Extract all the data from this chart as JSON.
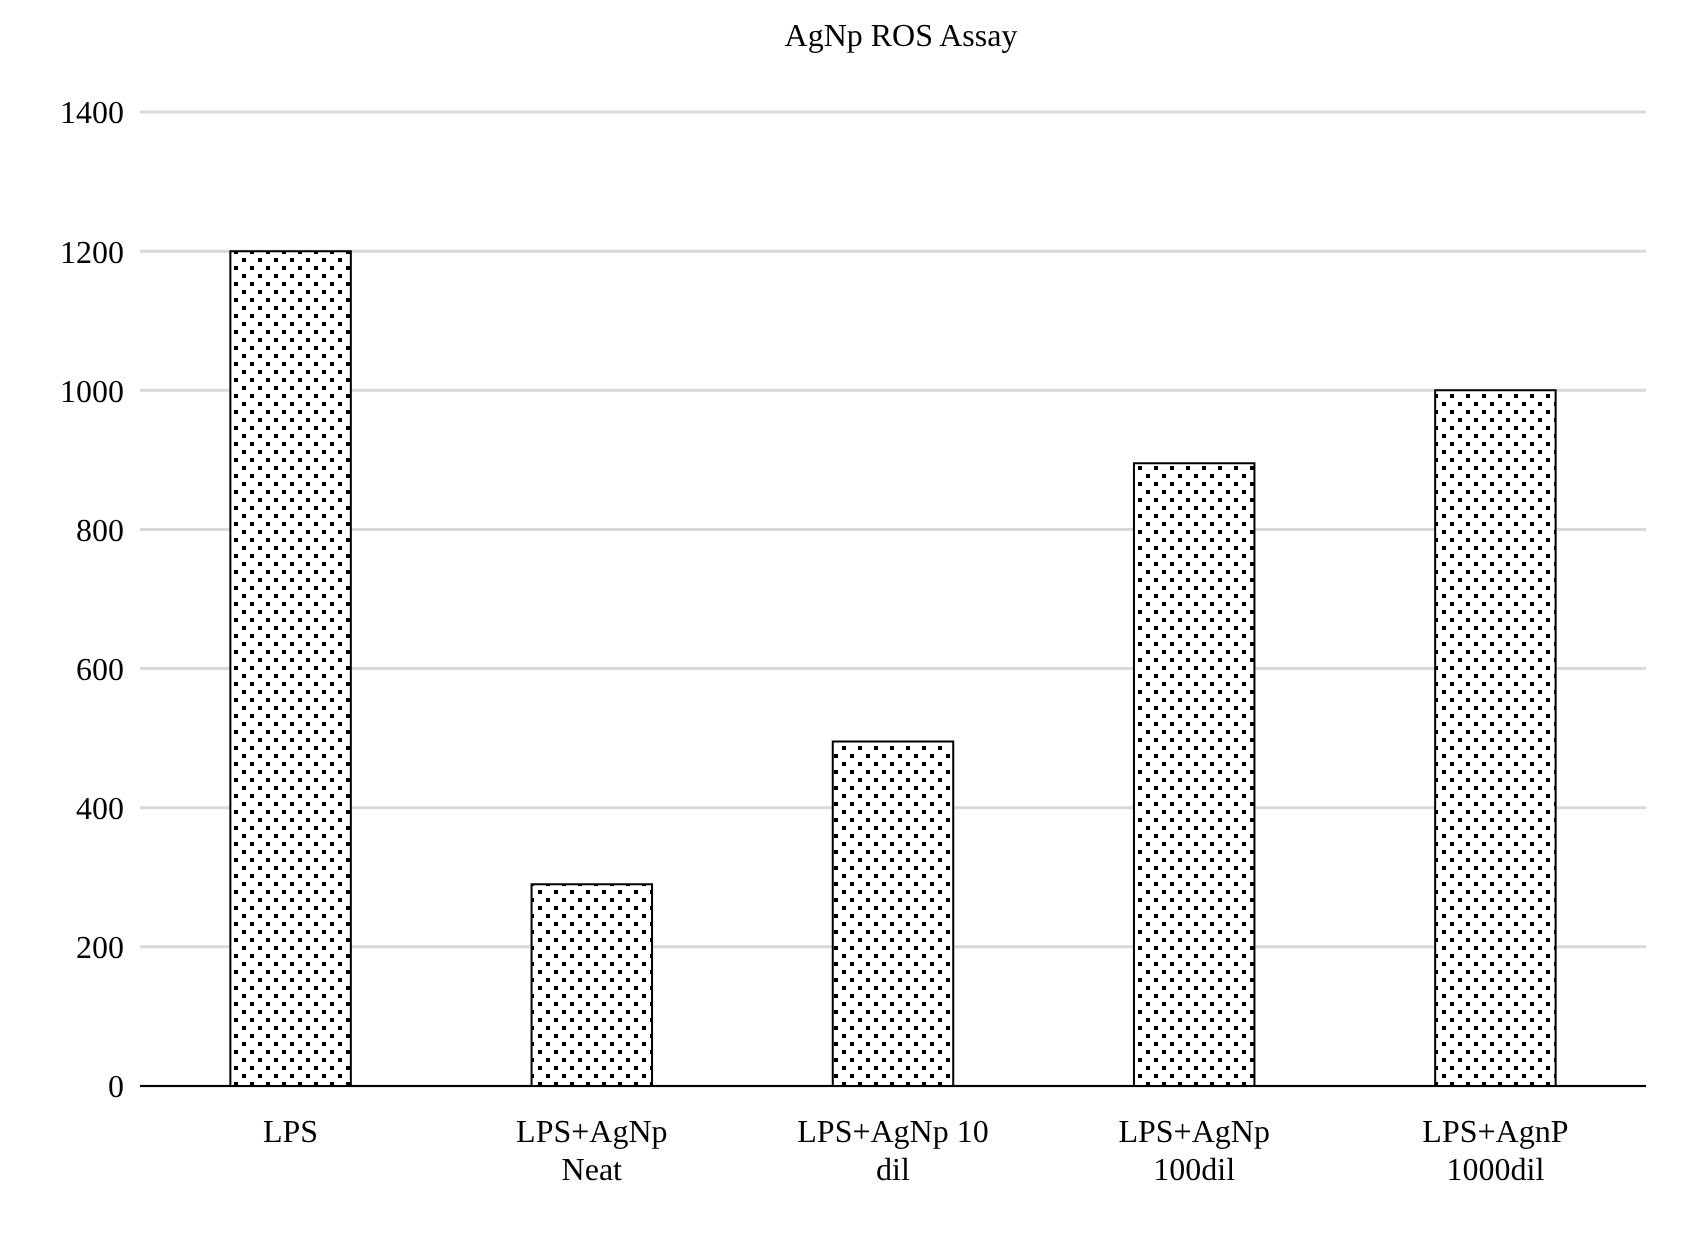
{
  "chart_data": {
    "type": "bar",
    "title": "AgNp ROS Assay",
    "categories": [
      "LPS",
      "LPS+AgNp Neat",
      "LPS+AgNp 10 dil",
      "LPS+AgNp 100dil",
      "LPS+AgnP 1000dil"
    ],
    "values": [
      1200,
      290,
      495,
      895,
      1000
    ],
    "color": "#000000",
    "ylim": [
      0,
      1400
    ],
    "yticks": [
      0,
      200,
      400,
      600,
      800,
      1000,
      1200,
      1400
    ],
    "grid": "y"
  }
}
